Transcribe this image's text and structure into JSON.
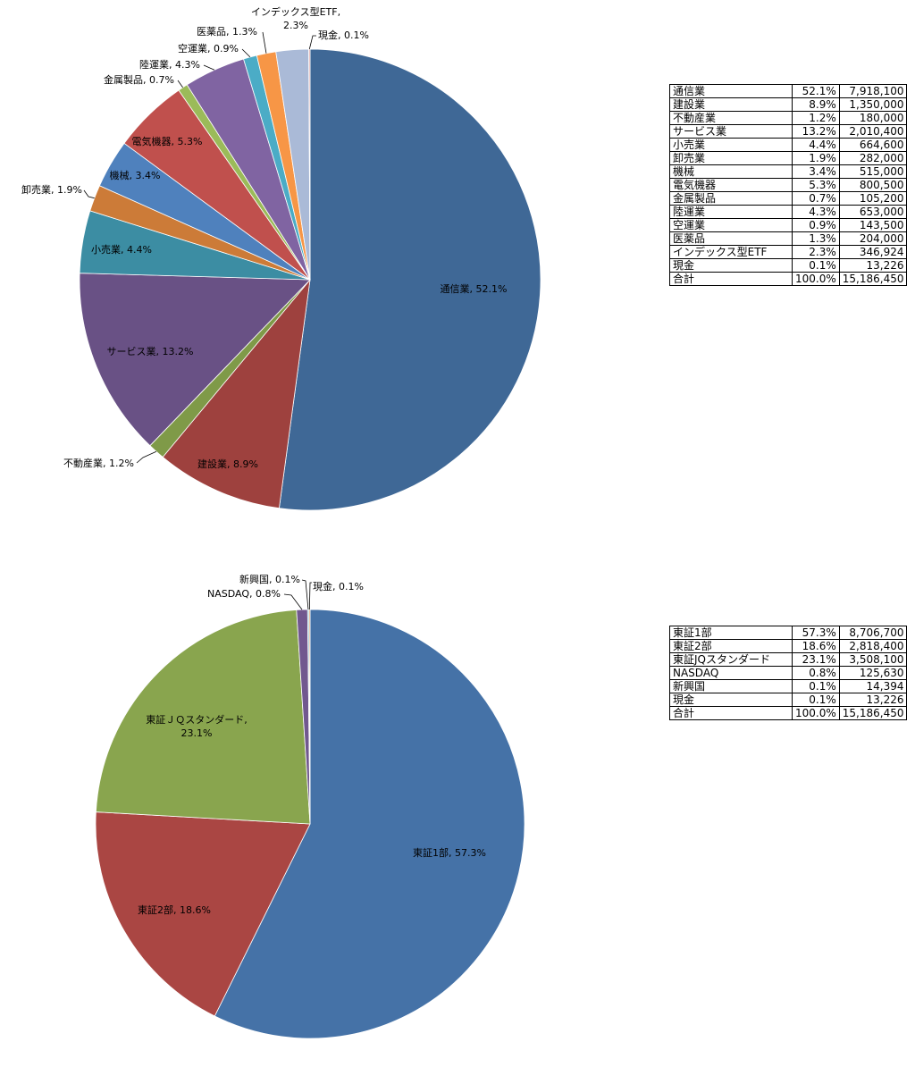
{
  "chart_data": [
    {
      "type": "pie",
      "slices": [
        {
          "label": "通信業",
          "pct": "52.1%",
          "value": 7918100,
          "color": "#3F6896"
        },
        {
          "label": "建設業",
          "pct": "8.9%",
          "value": 1350000,
          "color": "#9E413E"
        },
        {
          "label": "不動産業",
          "pct": "1.2%",
          "value": 180000,
          "color": "#7F9A48"
        },
        {
          "label": "サービス業",
          "pct": "13.2%",
          "value": 2010400,
          "color": "#695185"
        },
        {
          "label": "小売業",
          "pct": "4.4%",
          "value": 664600,
          "color": "#3C8DA3"
        },
        {
          "label": "卸売業",
          "pct": "1.9%",
          "value": 282000,
          "color": "#CC7B38"
        },
        {
          "label": "機械",
          "pct": "3.4%",
          "value": 515000,
          "color": "#4F81BD"
        },
        {
          "label": "電気機器",
          "pct": "5.3%",
          "value": 800500,
          "color": "#C0504D"
        },
        {
          "label": "金属製品",
          "pct": "0.7%",
          "value": 105200,
          "color": "#9BBB59"
        },
        {
          "label": "陸運業",
          "pct": "4.3%",
          "value": 653000,
          "color": "#8064A2"
        },
        {
          "label": "空運業",
          "pct": "0.9%",
          "value": 143500,
          "color": "#4BACC6"
        },
        {
          "label": "医薬品",
          "pct": "1.3%",
          "value": 204000,
          "color": "#F79646"
        },
        {
          "label": "インデックス型ETF",
          "pct": "2.3%",
          "value": 346924,
          "color": "#AABAD7"
        },
        {
          "label": "現金",
          "pct": "0.1%",
          "value": 13226,
          "color": "#D99694"
        }
      ],
      "total_label": "合計",
      "total_pct": "100.0%",
      "total_value": 15186450
    },
    {
      "type": "pie",
      "slices": [
        {
          "label": "東証1部",
          "table_label": "東証1部",
          "pct": "57.3%",
          "value": 8706700,
          "color": "#4572A7"
        },
        {
          "label": "東証2部",
          "table_label": "東証2部",
          "pct": "18.6%",
          "value": 2818400,
          "color": "#AA4643"
        },
        {
          "label": "東証ＪＱスタンダード",
          "table_label": "東証JQスタンダード",
          "pct": "23.1%",
          "value": 3508100,
          "color": "#89A54E"
        },
        {
          "label": "NASDAQ",
          "table_label": "NASDAQ",
          "pct": "0.8%",
          "value": 125630,
          "color": "#71588F"
        },
        {
          "label": "新興国",
          "table_label": "新興国",
          "pct": "0.1%",
          "value": 14394,
          "color": "#4198AF"
        },
        {
          "label": "現金",
          "table_label": "現金",
          "pct": "0.1%",
          "value": 13226,
          "color": "#DB843D"
        }
      ],
      "total_label": "合計",
      "total_pct": "100.0%",
      "total_value": 15186450
    }
  ]
}
